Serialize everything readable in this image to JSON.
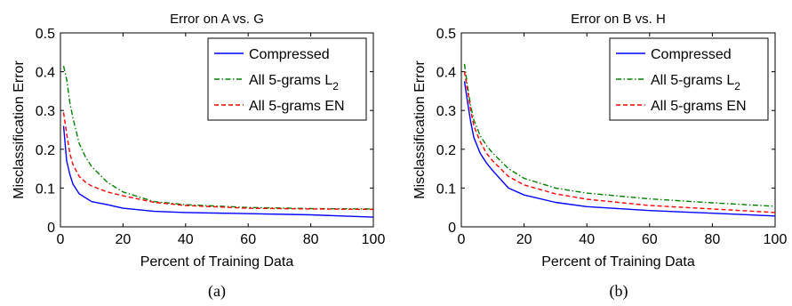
{
  "chart_data": [
    {
      "type": "line",
      "title": "Error on A vs. G",
      "xlabel": "Percent of Training Data",
      "ylabel": "Misclassification Error",
      "caption": "(a)",
      "xlim": [
        0,
        100
      ],
      "ylim": [
        0,
        0.5
      ],
      "xticks": [
        "0",
        "20",
        "40",
        "60",
        "80",
        "100"
      ],
      "yticks": [
        "0",
        "0.1",
        "0.2",
        "0.3",
        "0.4",
        "0.5"
      ],
      "grid": false,
      "legend_position": "top-right",
      "series": [
        {
          "name": "Compressed",
          "color": "#0000ff",
          "dash": "solid",
          "x": [
            1,
            2,
            3,
            4,
            6,
            8,
            10,
            15,
            20,
            30,
            40,
            60,
            80,
            100
          ],
          "y": [
            0.26,
            0.17,
            0.135,
            0.11,
            0.085,
            0.075,
            0.065,
            0.057,
            0.048,
            0.04,
            0.037,
            0.034,
            0.031,
            0.025
          ]
        },
        {
          "name": "All 5-grams L",
          "name_sub": "2",
          "color": "#008000",
          "dash": "dashdot",
          "x": [
            1,
            2,
            3,
            4,
            6,
            8,
            10,
            15,
            20,
            30,
            40,
            60,
            80,
            100
          ],
          "y": [
            0.415,
            0.38,
            0.32,
            0.28,
            0.215,
            0.18,
            0.155,
            0.115,
            0.09,
            0.065,
            0.057,
            0.05,
            0.047,
            0.046
          ]
        },
        {
          "name": "All 5-grams EN",
          "color": "#ff0000",
          "dash": "dashed",
          "x": [
            1,
            2,
            3,
            4,
            6,
            8,
            10,
            15,
            20,
            30,
            40,
            60,
            80,
            100
          ],
          "y": [
            0.295,
            0.24,
            0.19,
            0.16,
            0.13,
            0.115,
            0.105,
            0.09,
            0.08,
            0.063,
            0.055,
            0.048,
            0.046,
            0.045
          ]
        }
      ]
    },
    {
      "type": "line",
      "title": "Error on B vs. H",
      "xlabel": "Percent of Training Data",
      "ylabel": "Misclassification Error",
      "caption": "(b)",
      "xlim": [
        0,
        100
      ],
      "ylim": [
        0,
        0.5
      ],
      "xticks": [
        "0",
        "20",
        "40",
        "60",
        "80",
        "100"
      ],
      "yticks": [
        "0",
        "0.1",
        "0.2",
        "0.3",
        "0.4",
        "0.5"
      ],
      "grid": false,
      "legend_position": "top-right",
      "series": [
        {
          "name": "Compressed",
          "color": "#0000ff",
          "dash": "solid",
          "x": [
            1,
            2,
            3,
            4,
            6,
            8,
            10,
            15,
            20,
            30,
            40,
            60,
            80,
            100
          ],
          "y": [
            0.375,
            0.32,
            0.27,
            0.23,
            0.19,
            0.165,
            0.145,
            0.1,
            0.082,
            0.063,
            0.052,
            0.042,
            0.035,
            0.028
          ]
        },
        {
          "name": "All 5-grams L",
          "name_sub": "2",
          "color": "#008000",
          "dash": "dashdot",
          "x": [
            1,
            2,
            3,
            4,
            6,
            8,
            10,
            15,
            20,
            30,
            40,
            60,
            80,
            100
          ],
          "y": [
            0.42,
            0.36,
            0.31,
            0.275,
            0.235,
            0.21,
            0.19,
            0.15,
            0.125,
            0.1,
            0.087,
            0.072,
            0.062,
            0.053
          ]
        },
        {
          "name": "All 5-grams EN",
          "color": "#ff0000",
          "dash": "dashed",
          "x": [
            1,
            2,
            3,
            4,
            6,
            8,
            10,
            15,
            20,
            30,
            40,
            60,
            80,
            100
          ],
          "y": [
            0.4,
            0.35,
            0.3,
            0.26,
            0.22,
            0.19,
            0.17,
            0.13,
            0.108,
            0.085,
            0.071,
            0.055,
            0.046,
            0.037
          ]
        }
      ]
    }
  ]
}
